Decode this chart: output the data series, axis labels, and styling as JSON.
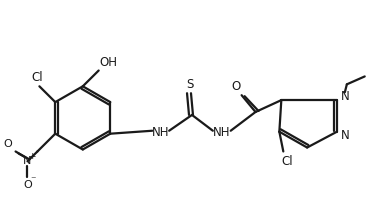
{
  "bg_color": "#ffffff",
  "line_color": "#1a1a1a",
  "text_color": "#1a1a1a",
  "line_width": 1.6,
  "font_size": 8.5,
  "figsize": [
    3.8,
    2.2
  ],
  "dpi": 100,
  "xlim": [
    0,
    380
  ],
  "ylim": [
    0,
    220
  ]
}
